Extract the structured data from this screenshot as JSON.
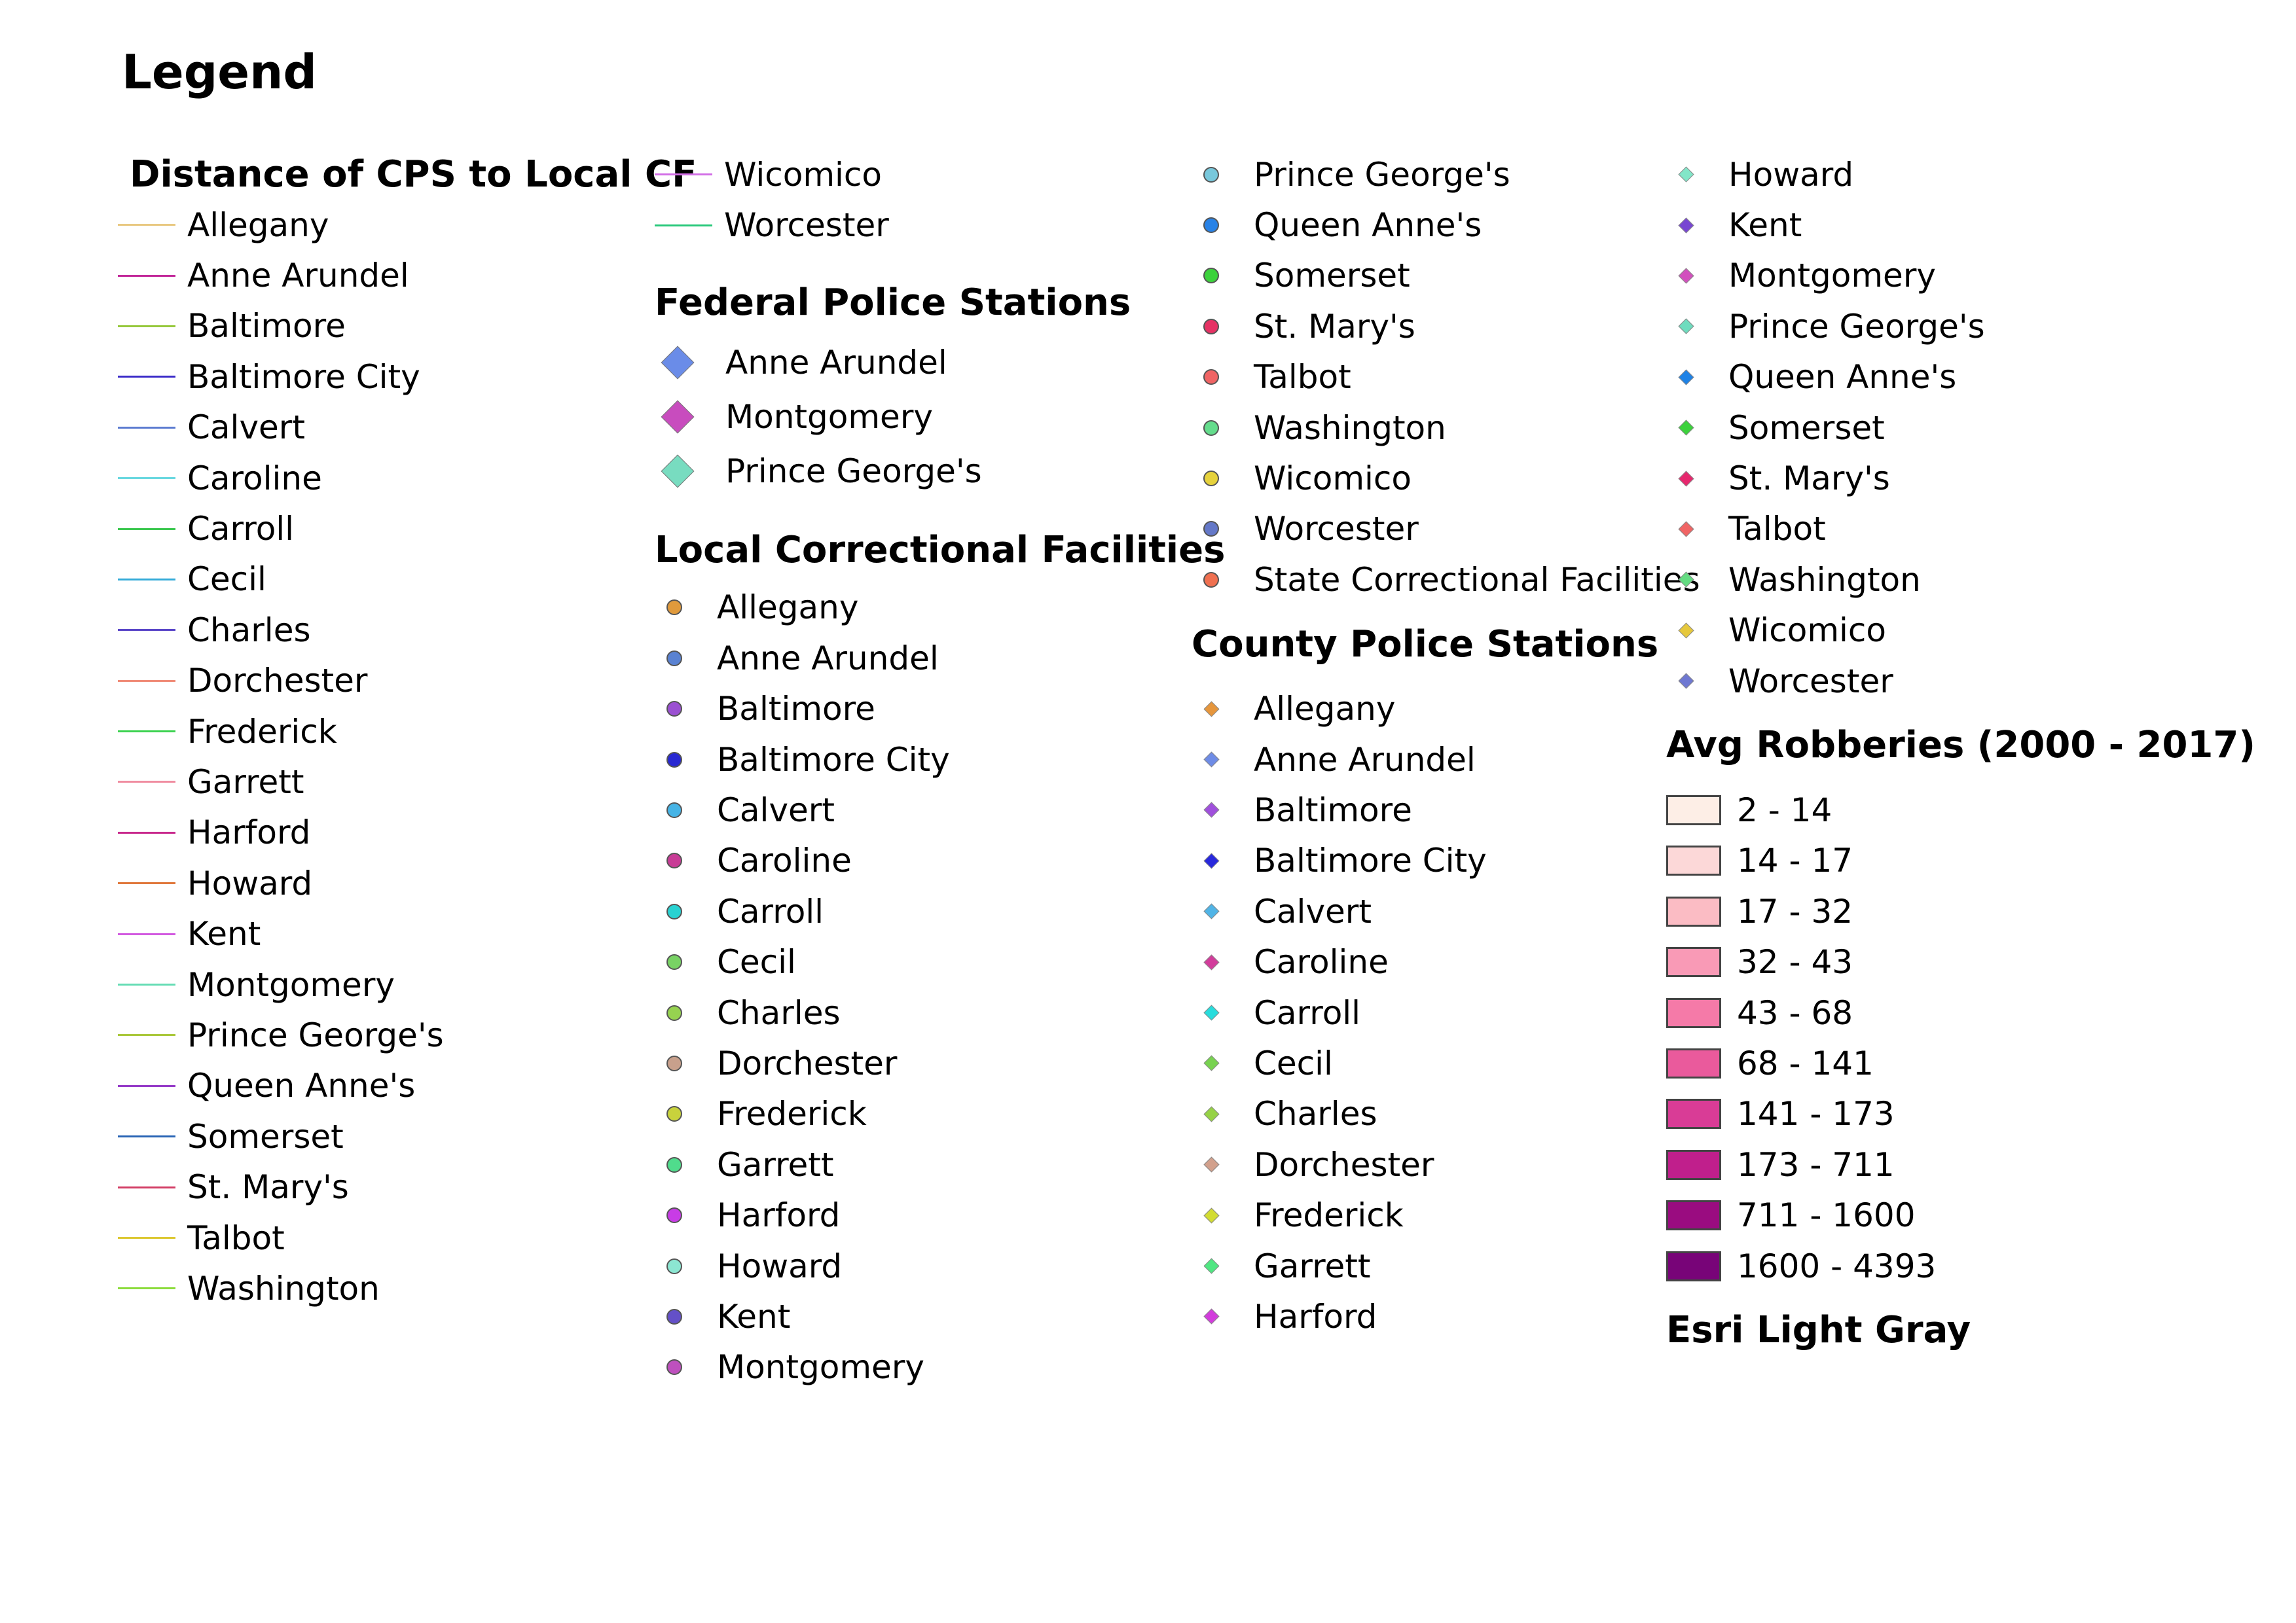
{
  "title": "Legend",
  "sections": {
    "distance": {
      "title": "Distance of CPS to Local CF",
      "items": [
        {
          "label": "Allegany",
          "color": "#e8c880"
        },
        {
          "label": "Anne Arundel",
          "color": "#c2289a"
        },
        {
          "label": "Baltimore",
          "color": "#96c83c"
        },
        {
          "label": "Baltimore City",
          "color": "#3a2ac8"
        },
        {
          "label": "Calvert",
          "color": "#5a7ad0"
        },
        {
          "label": "Caroline",
          "color": "#6ad8e0"
        },
        {
          "label": "Carroll",
          "color": "#3cc850"
        },
        {
          "label": "Cecil",
          "color": "#32aad8"
        },
        {
          "label": "Charles",
          "color": "#5a46c8"
        },
        {
          "label": "Dorchester",
          "color": "#f08c78"
        },
        {
          "label": "Frederick",
          "color": "#3cd250"
        },
        {
          "label": "Garrett",
          "color": "#f08ca0"
        },
        {
          "label": "Harford",
          "color": "#c8288c"
        },
        {
          "label": "Howard",
          "color": "#e0783c"
        },
        {
          "label": "Kent",
          "color": "#d25ae0"
        },
        {
          "label": "Montgomery",
          "color": "#64dcb4"
        },
        {
          "label": "Prince George's",
          "color": "#aac83c"
        },
        {
          "label": "Queen Anne's",
          "color": "#963cc8"
        },
        {
          "label": "Somerset",
          "color": "#2864b4"
        },
        {
          "label": "St. Mary's",
          "color": "#d23c64"
        },
        {
          "label": "Talbot",
          "color": "#dcc832"
        },
        {
          "label": "Washington",
          "color": "#8cdc3c"
        },
        {
          "label": "Wicomico",
          "color": "#d26ee6"
        },
        {
          "label": "Worcester",
          "color": "#28c87a"
        }
      ]
    },
    "federal": {
      "title": "Federal Police Stations",
      "items": [
        {
          "label": "Anne Arundel",
          "color": "#6a8ce8"
        },
        {
          "label": "Montgomery",
          "color": "#c84cbe"
        },
        {
          "label": "Prince George's",
          "color": "#78dcc0"
        }
      ]
    },
    "local_cf": {
      "title": "Local Correctional Facilities",
      "items": [
        {
          "label": "Allegany",
          "color": "#e09a3c"
        },
        {
          "label": "Anne Arundel",
          "color": "#5a82d2"
        },
        {
          "label": "Baltimore",
          "color": "#9b50d2"
        },
        {
          "label": "Baltimore City",
          "color": "#2828d2"
        },
        {
          "label": "Calvert",
          "color": "#46b4e6"
        },
        {
          "label": "Caroline",
          "color": "#c83c96"
        },
        {
          "label": "Carroll",
          "color": "#28d2d2"
        },
        {
          "label": "Cecil",
          "color": "#78d264"
        },
        {
          "label": "Charles",
          "color": "#96d250"
        },
        {
          "label": "Dorchester",
          "color": "#c8a08c"
        },
        {
          "label": "Frederick",
          "color": "#c8d23c"
        },
        {
          "label": "Garrett",
          "color": "#50dc8c"
        },
        {
          "label": "Harford",
          "color": "#c83ce6"
        },
        {
          "label": "Howard",
          "color": "#8ce6d2"
        },
        {
          "label": "Kent",
          "color": "#6450c8"
        },
        {
          "label": "Montgomery",
          "color": "#be50be"
        },
        {
          "label": "Prince George's",
          "color": "#78c8dc"
        },
        {
          "label": "Queen Anne's",
          "color": "#2882e6"
        },
        {
          "label": "Somerset",
          "color": "#3cd23c"
        },
        {
          "label": "St. Mary's",
          "color": "#e63264"
        },
        {
          "label": "Talbot",
          "color": "#f06464"
        },
        {
          "label": "Washington",
          "color": "#64dc8c"
        },
        {
          "label": "Wicomico",
          "color": "#e6d23c"
        },
        {
          "label": "Worcester",
          "color": "#6478c8"
        },
        {
          "label": "State Correctional Facilities",
          "color": "#f07050"
        }
      ]
    },
    "county": {
      "title": "County Police Stations",
      "items": [
        {
          "label": "Allegany",
          "color": "#e6963c"
        },
        {
          "label": "Anne Arundel",
          "color": "#6e8ce6"
        },
        {
          "label": "Baltimore",
          "color": "#a050dc"
        },
        {
          "label": "Baltimore City",
          "color": "#2828dc"
        },
        {
          "label": "Calvert",
          "color": "#50b4e6"
        },
        {
          "label": "Caroline",
          "color": "#d23c9b"
        },
        {
          "label": "Carroll",
          "color": "#28dcdc"
        },
        {
          "label": "Cecil",
          "color": "#78d250"
        },
        {
          "label": "Charles",
          "color": "#96d246"
        },
        {
          "label": "Dorchester",
          "color": "#d2a08c"
        },
        {
          "label": "Frederick",
          "color": "#d2dc32"
        },
        {
          "label": "Garrett",
          "color": "#50e682"
        },
        {
          "label": "Harford",
          "color": "#d23cdc"
        },
        {
          "label": "Howard",
          "color": "#82e6c8"
        },
        {
          "label": "Kent",
          "color": "#7846d2"
        },
        {
          "label": "Montgomery",
          "color": "#d250be"
        },
        {
          "label": "Prince George's",
          "color": "#6edcbe"
        },
        {
          "label": "Queen Anne's",
          "color": "#1e82e6"
        },
        {
          "label": "Somerset",
          "color": "#3cd23c"
        },
        {
          "label": "St. Mary's",
          "color": "#e6286e"
        },
        {
          "label": "Talbot",
          "color": "#f06464"
        },
        {
          "label": "Washington",
          "color": "#64dc82"
        },
        {
          "label": "Wicomico",
          "color": "#e6c83c"
        },
        {
          "label": "Worcester",
          "color": "#6e78d2"
        }
      ]
    },
    "robberies": {
      "title": "Avg Robberies (2000 -  2017)",
      "items": [
        {
          "label": "2 - 14",
          "color": "#fdeee6"
        },
        {
          "label": "14 - 17",
          "color": "#fcd8d8"
        },
        {
          "label": "17 - 32",
          "color": "#fbbcc4"
        },
        {
          "label": "32 - 43",
          "color": "#f99ab6"
        },
        {
          "label": "43 - 68",
          "color": "#f57aa8"
        },
        {
          "label": "68 - 141",
          "color": "#ea5a9c"
        },
        {
          "label": "141 - 173",
          "color": "#d93c96"
        },
        {
          "label": "173 - 711",
          "color": "#c01f8c"
        },
        {
          "label": "711 - 1600",
          "color": "#9a0c80"
        },
        {
          "label": "1600 - 4393",
          "color": "#780478"
        }
      ]
    },
    "basemap": {
      "title": "Esri Light Gray"
    }
  }
}
